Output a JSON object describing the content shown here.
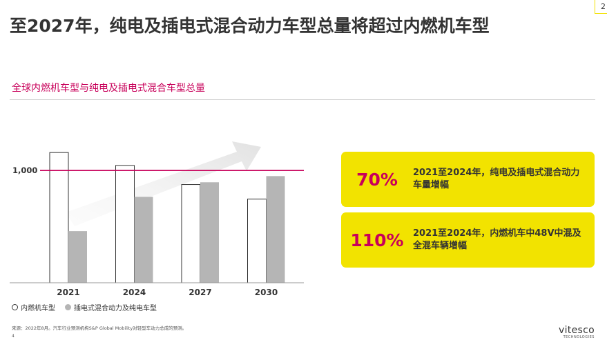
{
  "page_number": "2",
  "title": "至2027年，纯电及插电式混合动力车型总量将超过内燃机车型",
  "chart_data": {
    "type": "bar",
    "title": "全球内燃机车型与纯电及插电式混合车型总量",
    "categories": [
      "2021",
      "2024",
      "2027",
      "2030"
    ],
    "series": [
      {
        "name": "内燃机车型",
        "values": [
          1160,
          1045,
          875,
          745
        ],
        "fill": "#ffffff",
        "stroke": "#333333"
      },
      {
        "name": "插电式混合动力及纯电车型",
        "values": [
          460,
          765,
          895,
          950
        ],
        "fill": "#b5b5b5",
        "stroke": "none"
      }
    ],
    "reference_line": {
      "value": 1000,
      "label": "1,000",
      "color": "#c8005a"
    },
    "ylim": [
      0,
      1200
    ],
    "grid": false,
    "legend_position": "bottom-left"
  },
  "stats": [
    {
      "value": "70%",
      "text": "2021至2024年，纯电及插电式混合动力车量增幅"
    },
    {
      "value": "110%",
      "text": "2021至2024年，内燃机车中48V中混及全混车辆增幅"
    }
  ],
  "footnote": "来源：2022年8月。汽车行业预测机构S&P Global Mobility对轻型车动力总成的预测。",
  "slide_number": "4",
  "logo": {
    "word": "vitesco",
    "sub": "TECHNOLOGIES"
  },
  "colors": {
    "accent": "#c8005a",
    "highlight": "#f2e300"
  }
}
